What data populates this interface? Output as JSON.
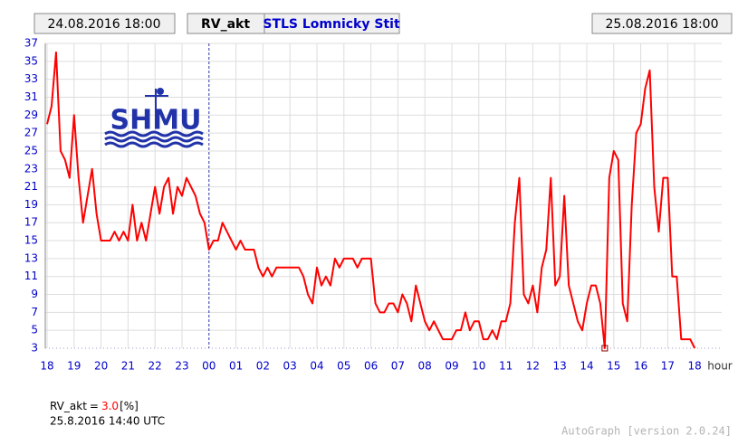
{
  "header": {
    "start": "24.08.2016 18:00",
    "variable": "RV_akt",
    "station": "STLS Lomnicky Stit",
    "end": "25.08.2016 18:00"
  },
  "logo": "SHMU",
  "readout": {
    "variable": "RV_akt",
    "equals": "=",
    "value": "3.0",
    "unit": "[%]",
    "time": "25.8.2016 14:40 UTC"
  },
  "footer": "AutoGraph [version 2.0.24]",
  "chart_data": {
    "type": "line",
    "x_label": "hour",
    "color": "#ff0000",
    "grid": true,
    "selected": 124,
    "dashed_tick": 6,
    "x": [
      0,
      10,
      20,
      30,
      40,
      50,
      60,
      70,
      80,
      90,
      100,
      110,
      120,
      130,
      140,
      150,
      160,
      170,
      180,
      190,
      200,
      210,
      220,
      230,
      240,
      250,
      260,
      270,
      280,
      290,
      300,
      310,
      320,
      330,
      340,
      350,
      360,
      370,
      380,
      390,
      400,
      410,
      420,
      430,
      440,
      450,
      460,
      470,
      480,
      490,
      500,
      510,
      520,
      530,
      540,
      550,
      560,
      570,
      580,
      590,
      600,
      610,
      620,
      630,
      640,
      650,
      660,
      670,
      680,
      690,
      700,
      710,
      720,
      730,
      740,
      750,
      760,
      770,
      780,
      790,
      800,
      810,
      820,
      830,
      840,
      850,
      860,
      870,
      880,
      890,
      900,
      910,
      920,
      930,
      940,
      950,
      960,
      970,
      980,
      990,
      1000,
      1010,
      1020,
      1030,
      1040,
      1050,
      1060,
      1070,
      1080,
      1090,
      1100,
      1110,
      1120,
      1130,
      1140,
      1150,
      1160,
      1170,
      1180,
      1190,
      1200,
      1210,
      1220,
      1230,
      1240,
      1250,
      1260,
      1270,
      1280,
      1290,
      1300,
      1310,
      1320,
      1330,
      1340,
      1350,
      1360,
      1370,
      1380,
      1390,
      1400,
      1410,
      1420,
      1430,
      1440
    ],
    "values": [
      28,
      30,
      36,
      25,
      24,
      22,
      29,
      22,
      17,
      20,
      23,
      18,
      15,
      15,
      15,
      16,
      15,
      16,
      15,
      19,
      15,
      17,
      15,
      18,
      21,
      18,
      21,
      22,
      18,
      21,
      20,
      22,
      21,
      20,
      18,
      17,
      14,
      15,
      15,
      17,
      16,
      15,
      14,
      15,
      14,
      14,
      14,
      12,
      11,
      12,
      11,
      12,
      12,
      12,
      12,
      12,
      12,
      11,
      9,
      8,
      12,
      10,
      11,
      10,
      13,
      12,
      13,
      13,
      13,
      12,
      13,
      13,
      13,
      8,
      7,
      7,
      8,
      8,
      7,
      9,
      8,
      6,
      10,
      8,
      6,
      5,
      6,
      5,
      4,
      4,
      4,
      5,
      5,
      7,
      5,
      6,
      6,
      4,
      4,
      5,
      4,
      6,
      6,
      8,
      17,
      22,
      9,
      8,
      10,
      7,
      12,
      14,
      22,
      10,
      11,
      20,
      10,
      8,
      6,
      5,
      8,
      10,
      10,
      8,
      3,
      22,
      25,
      24,
      8,
      6,
      19,
      27,
      28,
      32,
      34,
      21,
      16,
      22,
      22,
      11,
      11,
      4,
      4,
      4,
      3
    ],
    "xlim": [
      0,
      1500
    ],
    "xticks": [
      {
        "value": 0,
        "label": "18"
      },
      {
        "value": 60,
        "label": "19"
      },
      {
        "value": 120,
        "label": "20"
      },
      {
        "value": 180,
        "label": "21"
      },
      {
        "value": 240,
        "label": "22"
      },
      {
        "value": 300,
        "label": "23"
      },
      {
        "value": 360,
        "label": "00"
      },
      {
        "value": 420,
        "label": "01"
      },
      {
        "value": 480,
        "label": "02"
      },
      {
        "value": 540,
        "label": "03"
      },
      {
        "value": 600,
        "label": "04"
      },
      {
        "value": 660,
        "label": "05"
      },
      {
        "value": 720,
        "label": "06"
      },
      {
        "value": 780,
        "label": "07"
      },
      {
        "value": 840,
        "label": "08"
      },
      {
        "value": 900,
        "label": "09"
      },
      {
        "value": 960,
        "label": "10"
      },
      {
        "value": 1020,
        "label": "11"
      },
      {
        "value": 1080,
        "label": "12"
      },
      {
        "value": 1140,
        "label": "13"
      },
      {
        "value": 1200,
        "label": "14"
      },
      {
        "value": 1260,
        "label": "15"
      },
      {
        "value": 1320,
        "label": "16"
      },
      {
        "value": 1380,
        "label": "17"
      },
      {
        "value": 1440,
        "label": "18"
      }
    ],
    "ylim": [
      3,
      37
    ],
    "yticks": [
      3,
      5,
      7,
      9,
      11,
      13,
      15,
      17,
      19,
      21,
      23,
      25,
      27,
      29,
      31,
      33,
      35,
      37
    ]
  }
}
